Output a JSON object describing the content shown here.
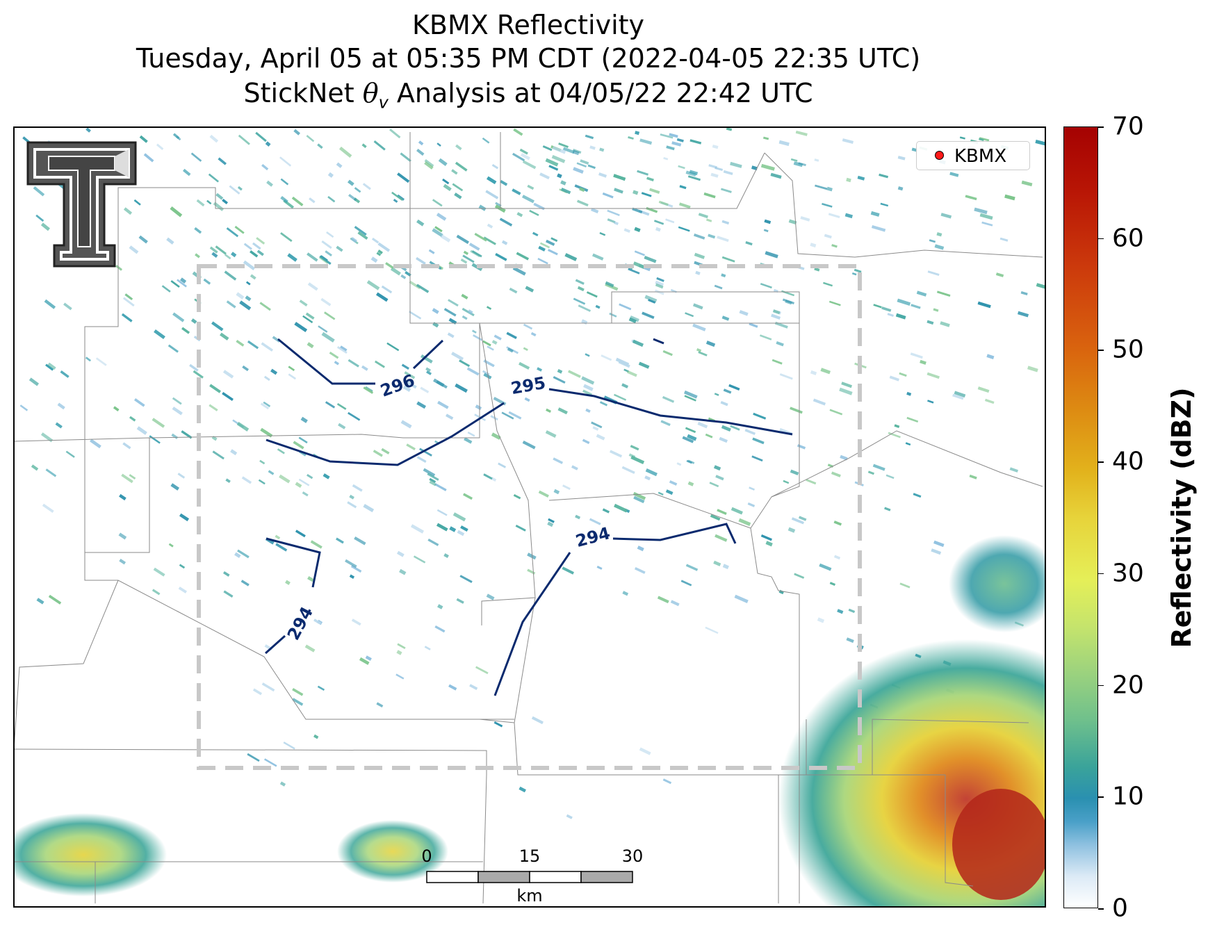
{
  "title": {
    "line1": "KBMX Reflectivity",
    "line2": "Tuesday, April 05 at 05:35 PM CDT (2022-04-05 22:35 UTC)",
    "line3_prefix": "StickNet ",
    "line3_symbol": "θ",
    "line3_subscript": "v",
    "line3_suffix": " Analysis at 04/05/22 22:42 UTC"
  },
  "legend": {
    "label": "KBMX",
    "marker_color": "#ff1a1a"
  },
  "colorbar": {
    "label": "Reflectivity (dBZ)",
    "min": 0,
    "max": 70,
    "ticks": [
      "0",
      "10",
      "20",
      "30",
      "40",
      "50",
      "60",
      "70"
    ]
  },
  "contours": [
    {
      "label": "296",
      "color": "#0a2a6e"
    },
    {
      "label": "295",
      "color": "#0a2a6e"
    },
    {
      "label": "294",
      "color": "#0a2a6e"
    },
    {
      "label": "294",
      "color": "#0a2a6e"
    }
  ],
  "scale_bar": {
    "ticks": [
      "0",
      "15",
      "30"
    ],
    "unit": "km"
  },
  "logo": {
    "name": "texas-tech-double-t-logo",
    "lettering": "T"
  }
}
